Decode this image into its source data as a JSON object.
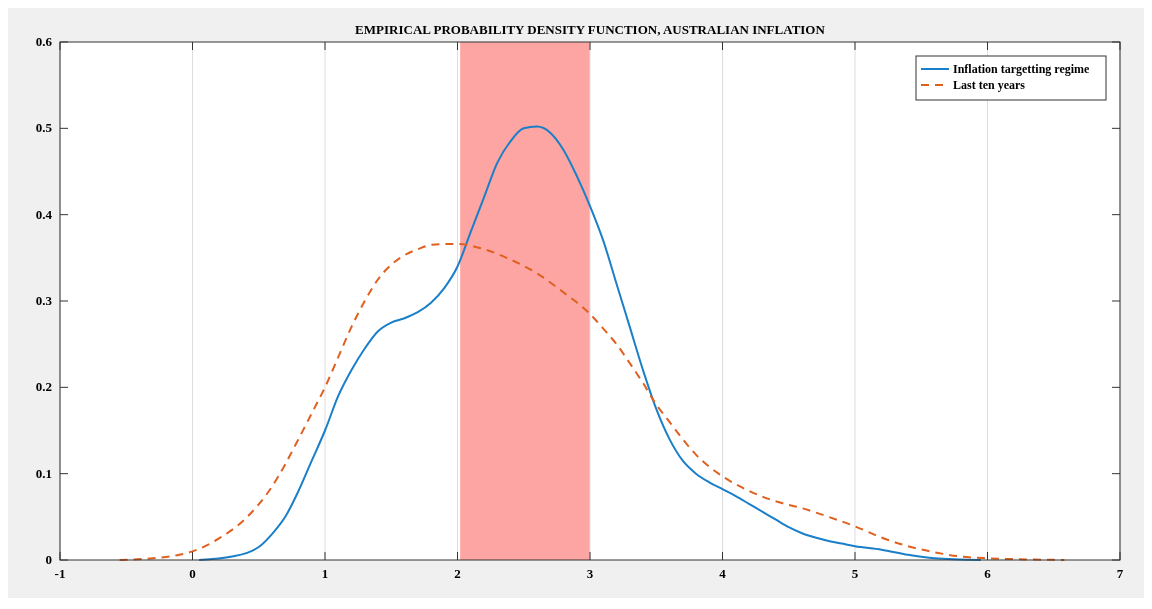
{
  "chart_data": {
    "type": "line",
    "title": "EMPIRICAL PROBABILITY DENSITY FUNCTION, AUSTRALIAN INFLATION",
    "xlim": [
      -1,
      7
    ],
    "xticks": [
      -1,
      0,
      1,
      2,
      3,
      4,
      5,
      6,
      7
    ],
    "ylim": [
      0,
      0.6
    ],
    "yticks": [
      0,
      0.1,
      0.2,
      0.3,
      0.4,
      0.5,
      0.6
    ],
    "grid": "x",
    "legend": "top right",
    "bands": [
      {
        "axis": "x",
        "from": 2.02,
        "to": 3.0,
        "color": "#fca5a2"
      }
    ],
    "series": [
      {
        "name": "Inflation targetting regime",
        "color": "#1a7fc9",
        "line_style": "solid",
        "x": [
          0.05,
          0.3,
          0.5,
          0.6,
          0.7,
          0.8,
          0.9,
          1.0,
          1.1,
          1.2,
          1.3,
          1.4,
          1.5,
          1.6,
          1.7,
          1.8,
          1.9,
          2.0,
          2.1,
          2.2,
          2.3,
          2.4,
          2.5,
          2.6,
          2.7,
          2.8,
          2.9,
          3.0,
          3.1,
          3.2,
          3.3,
          3.4,
          3.5,
          3.6,
          3.7,
          3.8,
          3.9,
          4.0,
          4.1,
          4.2,
          4.3,
          4.4,
          4.5,
          4.6,
          4.7,
          4.8,
          4.9,
          5.0,
          5.2,
          5.4,
          5.6,
          5.95
        ],
        "values": [
          0,
          0.004,
          0.015,
          0.03,
          0.05,
          0.08,
          0.115,
          0.15,
          0.19,
          0.22,
          0.245,
          0.265,
          0.275,
          0.28,
          0.287,
          0.298,
          0.315,
          0.34,
          0.38,
          0.42,
          0.46,
          0.485,
          0.5,
          0.502,
          0.495,
          0.475,
          0.445,
          0.41,
          0.37,
          0.32,
          0.27,
          0.22,
          0.175,
          0.14,
          0.115,
          0.1,
          0.09,
          0.082,
          0.074,
          0.065,
          0.056,
          0.047,
          0.038,
          0.031,
          0.026,
          0.022,
          0.019,
          0.016,
          0.012,
          0.006,
          0.002,
          0
        ]
      },
      {
        "name": "Last ten years",
        "color": "#e06020",
        "line_style": "dashed",
        "x": [
          -0.55,
          -0.3,
          -0.1,
          0,
          0.2,
          0.4,
          0.6,
          0.8,
          0.9,
          1.0,
          1.1,
          1.2,
          1.3,
          1.4,
          1.5,
          1.6,
          1.7,
          1.8,
          1.9,
          2.0,
          2.2,
          2.4,
          2.6,
          2.8,
          3.0,
          3.1,
          3.2,
          3.3,
          3.4,
          3.5,
          3.6,
          3.7,
          3.8,
          3.9,
          4.0,
          4.2,
          4.4,
          4.6,
          4.8,
          5.0,
          5.2,
          5.4,
          5.6,
          5.8,
          6.0,
          6.2,
          6.58
        ],
        "values": [
          0,
          0.002,
          0.006,
          0.01,
          0.025,
          0.048,
          0.085,
          0.14,
          0.17,
          0.2,
          0.235,
          0.27,
          0.3,
          0.325,
          0.342,
          0.353,
          0.36,
          0.365,
          0.366,
          0.366,
          0.36,
          0.348,
          0.332,
          0.31,
          0.285,
          0.268,
          0.25,
          0.228,
          0.205,
          0.18,
          0.16,
          0.14,
          0.122,
          0.108,
          0.097,
          0.08,
          0.068,
          0.06,
          0.05,
          0.039,
          0.026,
          0.016,
          0.009,
          0.004,
          0.002,
          0.001,
          0
        ]
      }
    ]
  }
}
